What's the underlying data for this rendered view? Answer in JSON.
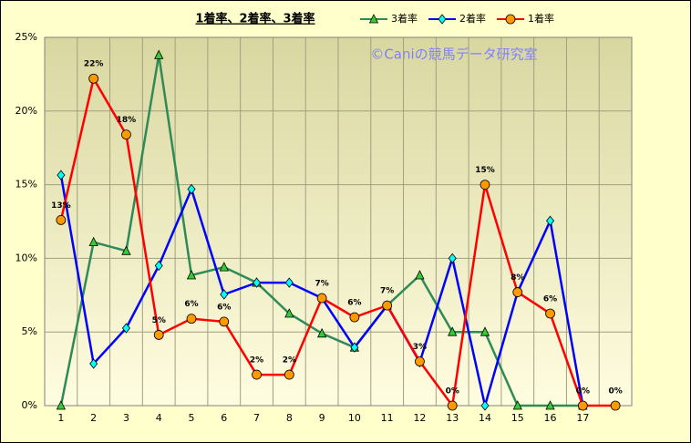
{
  "chart_data": {
    "type": "line",
    "title": "1着率、2着率、3着率",
    "annotation": "©Caniの競馬データ研究室",
    "categories": [
      "1",
      "2",
      "3",
      "4",
      "5",
      "6",
      "7",
      "8",
      "9",
      "10",
      "11",
      "12",
      "13",
      "14",
      "15",
      "16",
      "17",
      null
    ],
    "series": [
      {
        "name": "3着率",
        "color": "#2e8b57",
        "marker": "triangle",
        "marker_color": "#33cc33",
        "values": [
          0,
          11.1,
          10.5,
          23.8,
          8.85,
          9.4,
          8.35,
          6.25,
          4.9,
          3.95,
          6.8,
          8.85,
          5.0,
          5.0,
          0,
          0,
          0,
          null
        ]
      },
      {
        "name": "2着率",
        "color": "#0000ff",
        "marker": "diamond",
        "marker_color": "#00ffff",
        "values": [
          15.65,
          2.85,
          5.26,
          9.5,
          14.7,
          7.55,
          8.35,
          8.35,
          7.3,
          3.95,
          6.8,
          2.95,
          10.0,
          0,
          7.7,
          12.55,
          0,
          null
        ]
      },
      {
        "name": "1着率",
        "color": "#ff0000",
        "marker": "circle",
        "marker_color": "#ff9900",
        "values": [
          12.6,
          22.2,
          18.4,
          4.8,
          5.9,
          5.7,
          2.1,
          2.1,
          7.3,
          6.0,
          6.8,
          3.0,
          0,
          15.0,
          7.7,
          6.25,
          0,
          0
        ],
        "value_labels": [
          "13%",
          "22%",
          "18%",
          "5%",
          "6%",
          "6%",
          "2%",
          "2%",
          "7%",
          "6%",
          "7%",
          "3%",
          "0%",
          "15%",
          "8%",
          "6%",
          "0%",
          "0%"
        ]
      }
    ],
    "ylim": [
      0,
      25
    ],
    "yticks": [
      {
        "value": 0,
        "label": "0%"
      },
      {
        "value": 5,
        "label": "5%"
      },
      {
        "value": 10,
        "label": "10%"
      },
      {
        "value": 15,
        "label": "15%"
      },
      {
        "value": 20,
        "label": "20%"
      },
      {
        "value": 25,
        "label": "25%"
      }
    ],
    "grid": true
  }
}
